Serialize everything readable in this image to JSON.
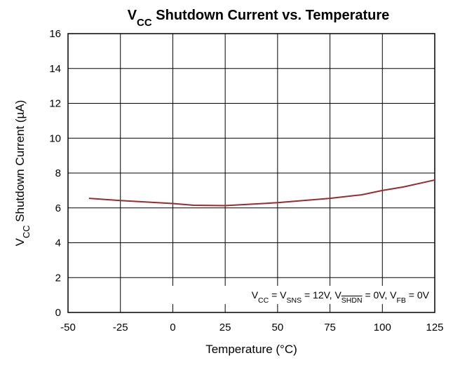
{
  "chart_data": {
    "type": "line",
    "title": [
      "V",
      "CC",
      " Shutdown Current  vs. Temperature"
    ],
    "ylabel": [
      "V",
      "CC",
      " Shutdown Current (µA)"
    ],
    "xlabel": "Temperature (°C)",
    "annotation": [
      "V",
      "CC",
      " = V",
      "SNS",
      " = 12V, V",
      "SHDN",
      " = 0V, V",
      "FB",
      " = 0V"
    ],
    "annotation_overline": 5,
    "x": [
      -40,
      -25,
      0,
      10,
      25,
      50,
      75,
      90,
      100,
      110,
      125
    ],
    "series": [
      {
        "name": "VCC Shutdown Current",
        "color": "#9b2b2b",
        "values": [
          6.55,
          6.42,
          6.25,
          6.15,
          6.13,
          6.3,
          6.55,
          6.75,
          7.0,
          7.2,
          7.6
        ]
      }
    ],
    "xlim": [
      -50,
      125
    ],
    "xticks": [
      -50,
      -25,
      0,
      25,
      50,
      75,
      100,
      125
    ],
    "ylim": [
      0,
      16
    ],
    "yticks": [
      0,
      2,
      4,
      6,
      8,
      10,
      12,
      14,
      16
    ],
    "grid": true
  }
}
